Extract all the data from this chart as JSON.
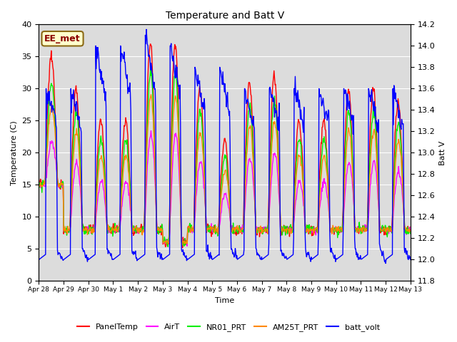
{
  "title": "Temperature and Batt V",
  "xlabel": "Time",
  "ylabel_left": "Temperature (C)",
  "ylabel_right": "Batt V",
  "ylim_left": [
    0,
    40
  ],
  "ylim_right": [
    11.8,
    14.2
  ],
  "annotation": "EE_met",
  "background_color": "#dcdcdc",
  "figure_color": "#ffffff",
  "xtick_labels": [
    "Apr 28",
    "Apr 29",
    "Apr 30",
    "May 1",
    "May 2",
    "May 3",
    "May 4",
    "May 5",
    "May 6",
    "May 7",
    "May 8",
    "May 9",
    "May 10",
    "May 11",
    "May 12",
    "May 13"
  ],
  "series": {
    "PanelTemp": {
      "color": "#ff0000",
      "lw": 1.0
    },
    "AirT": {
      "color": "#ff00ff",
      "lw": 1.0
    },
    "NR01_PRT": {
      "color": "#00ee00",
      "lw": 1.0
    },
    "AM25T_PRT": {
      "color": "#ff8800",
      "lw": 1.0
    },
    "batt_volt": {
      "color": "#0000ff",
      "lw": 1.0
    }
  },
  "legend_colors": [
    "#ff0000",
    "#ff00ff",
    "#00ee00",
    "#ff8800",
    "#0000ff"
  ],
  "legend_labels": [
    "PanelTemp",
    "AirT",
    "NR01_PRT",
    "AM25T_PRT",
    "batt_volt"
  ]
}
